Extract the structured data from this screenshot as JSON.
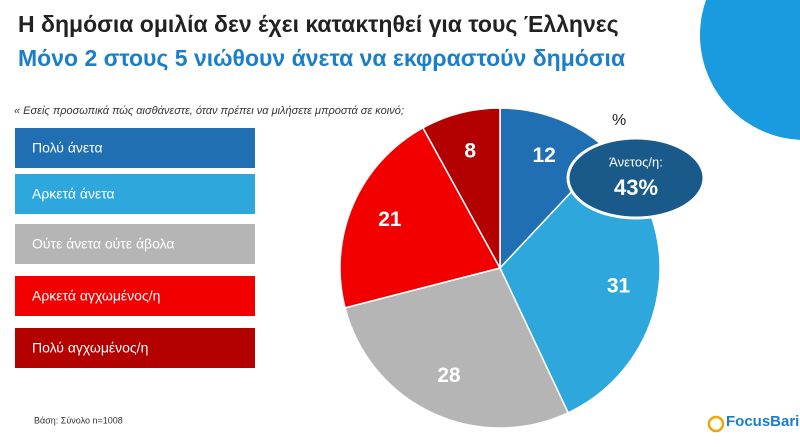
{
  "chart_data": {
    "type": "pie",
    "title": "Η δημόσια ομιλία δεν έχει κατακτηθεί για τους Έλληνες",
    "subtitle": "Μόνο 2 στους 5 νιώθουν άνετα να εκφραστούν δημόσια",
    "question": "« Εσείς προσωπικά πώς αισθάνεστε, όταν πρέπει να μιλήσετε μπροστά σε κοινό;",
    "unit": "%",
    "categories": [
      "Πολύ άνετα",
      "Αρκετά άνετα",
      "Ούτε άνετα ούτε άβολα",
      "Αρκετά αγχωμένος/η",
      "Πολύ αγχωμένος/η"
    ],
    "values": [
      12,
      31,
      28,
      21,
      8
    ],
    "colors": [
      "#1f6fb2",
      "#2ea8dc",
      "#b5b5b5",
      "#f20000",
      "#b30000"
    ],
    "callout": {
      "label": "Άνετος/η:",
      "value": 43,
      "value_label": "43%"
    },
    "note": "Βάση: Σύνολο n=1008",
    "logo": "FocusBari"
  }
}
